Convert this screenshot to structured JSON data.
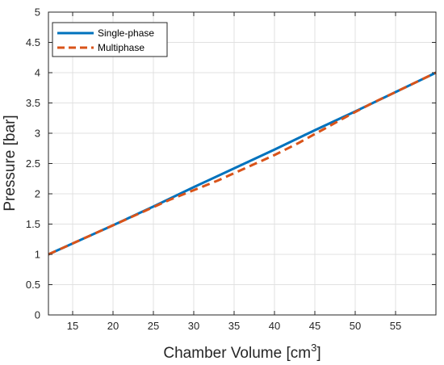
{
  "chart_data": {
    "type": "line",
    "title": "",
    "xlabel": "Chamber Volume [cm",
    "xlabel_superscript": "3",
    "xlabel_suffix": "]",
    "ylabel": "Pressure [bar]",
    "xlim": [
      12,
      60
    ],
    "ylim": [
      0,
      5
    ],
    "xticks": [
      15,
      20,
      25,
      30,
      35,
      40,
      45,
      50,
      55
    ],
    "yticks": [
      0,
      0.5,
      1,
      1.5,
      2,
      2.5,
      3,
      3.5,
      4,
      4.5,
      5
    ],
    "ytick_labels": [
      "0",
      "0.5",
      "1",
      "1.5",
      "2",
      "2.5",
      "3",
      "3.5",
      "4",
      "4.5",
      "5"
    ],
    "grid": true,
    "legend_position": "top-left",
    "series": [
      {
        "name": "Single-phase",
        "color": "#0072BD",
        "style": "solid",
        "x": [
          12,
          20,
          25,
          30,
          35,
          40,
          45,
          50,
          55,
          60
        ],
        "y": [
          1.0,
          1.48,
          1.79,
          2.11,
          2.42,
          2.73,
          3.05,
          3.36,
          3.68,
          4.0
        ]
      },
      {
        "name": "Multiphase",
        "color": "#D95319",
        "style": "dashed",
        "x": [
          12,
          20,
          25,
          27,
          30,
          33,
          36,
          40,
          43,
          46,
          49,
          52,
          55,
          60
        ],
        "y": [
          1.0,
          1.48,
          1.78,
          1.9,
          2.06,
          2.22,
          2.4,
          2.64,
          2.84,
          3.06,
          3.28,
          3.49,
          3.68,
          4.0
        ]
      }
    ]
  }
}
